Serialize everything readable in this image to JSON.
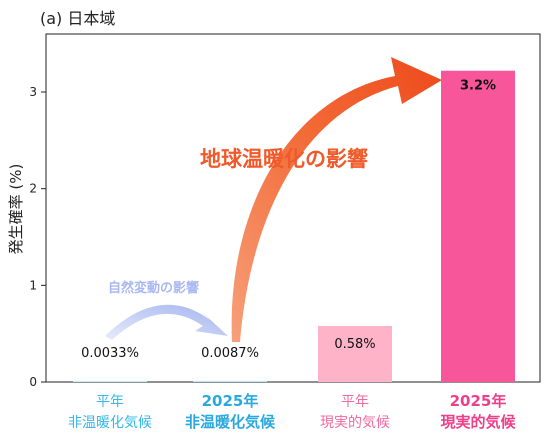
{
  "chart_data": {
    "type": "bar",
    "title": "(a) 日本域",
    "ylabel": "発生確率 (%)",
    "ylim": [
      0,
      3.6
    ],
    "yticks": [
      0,
      1,
      2,
      3
    ],
    "grid": false,
    "categories": [
      {
        "line1": "平年",
        "line2": "非温暖化気候",
        "color": "#35b8e8",
        "bold": false
      },
      {
        "line1": "2025年",
        "line2": "非温暖化気候",
        "color": "#2aa8e0",
        "bold": true
      },
      {
        "line1": "平年",
        "line2": "現実的気候",
        "color": "#f06aa0",
        "bold": false
      },
      {
        "line1": "2025年",
        "line2": "現実的気候",
        "color": "#ee3f8a",
        "bold": true
      }
    ],
    "values": [
      0.0033,
      0.0087,
      0.58,
      3.22
    ],
    "value_labels": [
      "0.0033%",
      "0.0087%",
      "0.58%",
      "3.2%"
    ],
    "bar_colors": [
      "#cdeefa",
      "#bfe7f7",
      "#ffb3c8",
      "#f7569a"
    ],
    "annotations": {
      "global_warming": {
        "text": "地球温暖化の影響",
        "color": "#f05a2a"
      },
      "natural_variability": {
        "text": "自然変動の影響",
        "color": "#a9b8f2"
      }
    }
  }
}
